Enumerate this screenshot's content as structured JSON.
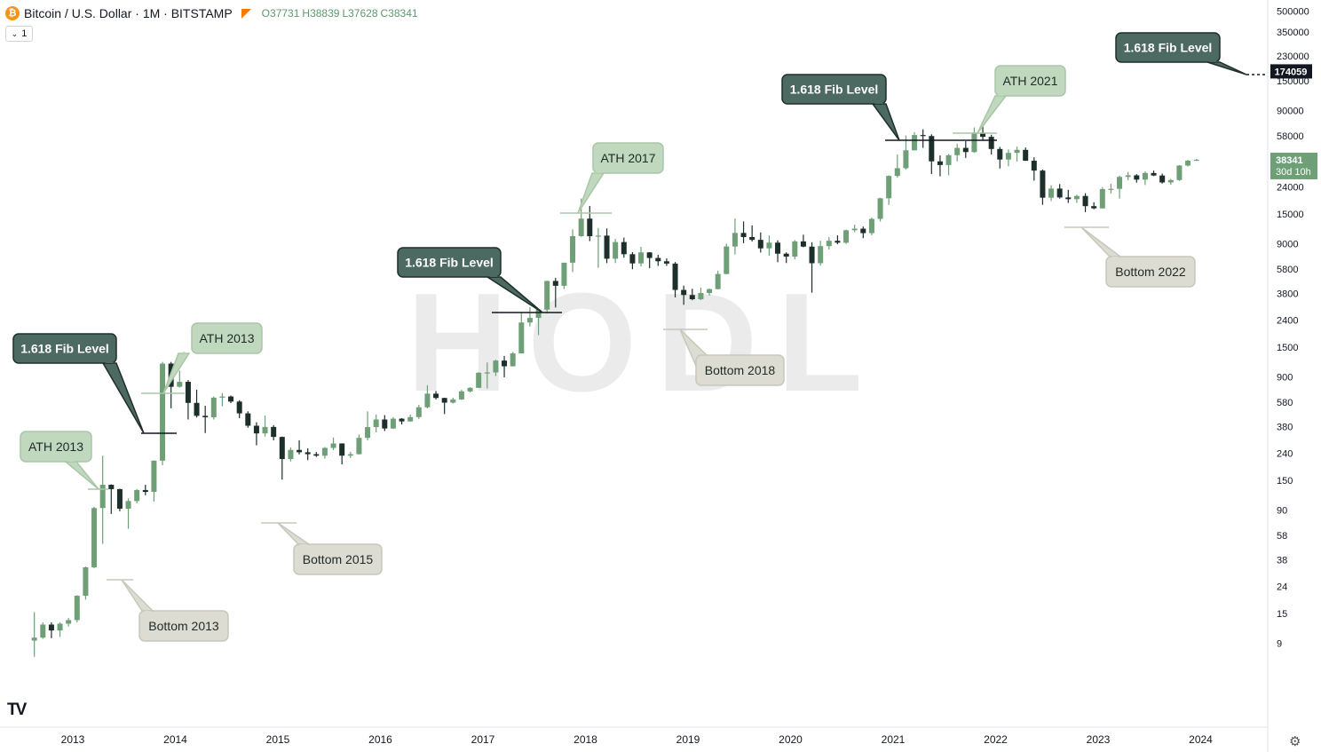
{
  "header": {
    "title": "Bitcoin / U.S. Dollar · 1M · BITSTAMP",
    "coin_icon": "bitcoin-icon",
    "open_label": "O",
    "open": "37731",
    "high_label": "H",
    "high": "38839",
    "low_label": "L",
    "low": "37628",
    "close_label": "C",
    "close": "38341"
  },
  "collapse_button": {
    "label": "1"
  },
  "colors": {
    "up": "#6f9f76",
    "down": "#1d2f2b",
    "fib_fill": "#4c6a62",
    "ath_fill": "#c0d8be",
    "bottom_fill": "#dcdcd2",
    "watermark": "#ebebeb",
    "last_price_bg": "#6f9f76",
    "fib_price_bg": "#131722"
  },
  "chart_data": {
    "type": "candlestick",
    "interval": "1M",
    "y_scale": "log",
    "ylim": [
      5,
      500000
    ],
    "y_ticks": [
      9,
      15,
      24,
      38,
      58,
      90,
      150,
      240,
      380,
      580,
      900,
      1500,
      2400,
      3800,
      5800,
      9000,
      15000,
      24000,
      38000,
      58000,
      90000,
      150000,
      230000,
      350000,
      500000
    ],
    "x_ticks": [
      "2013",
      "2014",
      "2015",
      "2016",
      "2017",
      "2018",
      "2019",
      "2020",
      "2021",
      "2022",
      "2023",
      "2024"
    ],
    "watermark": "HODL",
    "last_price": {
      "value": "38341",
      "countdown": "30d 10h"
    },
    "fib_price_label": "174059",
    "candles": [
      {
        "t": "2012-08",
        "o": 9.4,
        "h": 15.4,
        "l": 7.1,
        "c": 9.9
      },
      {
        "t": "2012-09",
        "o": 9.9,
        "h": 12.9,
        "l": 9.7,
        "c": 12.4
      },
      {
        "t": "2012-10",
        "o": 12.4,
        "h": 12.9,
        "l": 9.8,
        "c": 11.2
      },
      {
        "t": "2012-11",
        "o": 11.2,
        "h": 12.9,
        "l": 10.0,
        "c": 12.6
      },
      {
        "t": "2012-12",
        "o": 12.6,
        "h": 13.9,
        "l": 12.0,
        "c": 13.4
      },
      {
        "t": "2013-01",
        "o": 13.4,
        "h": 20.6,
        "l": 12.9,
        "c": 20.4
      },
      {
        "t": "2013-02",
        "o": 20.4,
        "h": 33.8,
        "l": 19.1,
        "c": 33.4
      },
      {
        "t": "2013-03",
        "o": 33.4,
        "h": 95.0,
        "l": 32.9,
        "c": 93.0
      },
      {
        "t": "2013-04",
        "o": 93.0,
        "h": 230.0,
        "l": 50.0,
        "c": 139.0
      },
      {
        "t": "2013-05",
        "o": 139.0,
        "h": 140.0,
        "l": 84.0,
        "c": 129.0
      },
      {
        "t": "2013-06",
        "o": 129.0,
        "h": 130.0,
        "l": 88.0,
        "c": 92.0
      },
      {
        "t": "2013-07",
        "o": 92.0,
        "h": 110.0,
        "l": 65.0,
        "c": 105.0
      },
      {
        "t": "2013-08",
        "o": 105.0,
        "h": 129.0,
        "l": 101.0,
        "c": 127.0
      },
      {
        "t": "2013-09",
        "o": 127.0,
        "h": 139.0,
        "l": 116.0,
        "c": 123.0
      },
      {
        "t": "2013-10",
        "o": 123.0,
        "h": 212.0,
        "l": 104.0,
        "c": 211.0
      },
      {
        "t": "2013-11",
        "o": 211.0,
        "h": 1163.0,
        "l": 195.0,
        "c": 1130.0
      },
      {
        "t": "2013-12",
        "o": 1130.0,
        "h": 1163.0,
        "l": 522.0,
        "c": 757.0
      },
      {
        "t": "2014-01",
        "o": 757.0,
        "h": 1000.0,
        "l": 747.0,
        "c": 825.0
      },
      {
        "t": "2014-02",
        "o": 825.0,
        "h": 850.0,
        "l": 430.0,
        "c": 573.0
      },
      {
        "t": "2014-03",
        "o": 573.0,
        "h": 720.0,
        "l": 445.0,
        "c": 458.0
      },
      {
        "t": "2014-04",
        "o": 458.0,
        "h": 545.0,
        "l": 340.0,
        "c": 447.0
      },
      {
        "t": "2014-05",
        "o": 447.0,
        "h": 640.0,
        "l": 430.0,
        "c": 627.0
      },
      {
        "t": "2014-06",
        "o": 627.0,
        "h": 680.0,
        "l": 540.0,
        "c": 640.0
      },
      {
        "t": "2014-07",
        "o": 640.0,
        "h": 650.0,
        "l": 570.0,
        "c": 586.0
      },
      {
        "t": "2014-08",
        "o": 586.0,
        "h": 600.0,
        "l": 440.0,
        "c": 478.0
      },
      {
        "t": "2014-09",
        "o": 478.0,
        "h": 495.0,
        "l": 373.0,
        "c": 386.0
      },
      {
        "t": "2014-10",
        "o": 386.0,
        "h": 410.0,
        "l": 275.0,
        "c": 338.0
      },
      {
        "t": "2014-11",
        "o": 338.0,
        "h": 460.0,
        "l": 320.0,
        "c": 378.0
      },
      {
        "t": "2014-12",
        "o": 378.0,
        "h": 390.0,
        "l": 300.0,
        "c": 318.0
      },
      {
        "t": "2015-01",
        "o": 318.0,
        "h": 320.0,
        "l": 152.0,
        "c": 217.0
      },
      {
        "t": "2015-02",
        "o": 217.0,
        "h": 265.0,
        "l": 208.0,
        "c": 254.0
      },
      {
        "t": "2015-03",
        "o": 254.0,
        "h": 300.0,
        "l": 235.0,
        "c": 244.0
      },
      {
        "t": "2015-04",
        "o": 244.0,
        "h": 261.0,
        "l": 213.0,
        "c": 236.0
      },
      {
        "t": "2015-05",
        "o": 236.0,
        "h": 245.0,
        "l": 225.0,
        "c": 230.0
      },
      {
        "t": "2015-06",
        "o": 230.0,
        "h": 267.0,
        "l": 218.0,
        "c": 263.0
      },
      {
        "t": "2015-07",
        "o": 263.0,
        "h": 315.0,
        "l": 253.0,
        "c": 284.0
      },
      {
        "t": "2015-08",
        "o": 284.0,
        "h": 285.0,
        "l": 198.0,
        "c": 230.0
      },
      {
        "t": "2015-09",
        "o": 230.0,
        "h": 246.0,
        "l": 221.0,
        "c": 236.0
      },
      {
        "t": "2015-10",
        "o": 236.0,
        "h": 332.0,
        "l": 235.0,
        "c": 313.0
      },
      {
        "t": "2015-11",
        "o": 313.0,
        "h": 495.0,
        "l": 300.0,
        "c": 377.0
      },
      {
        "t": "2015-12",
        "o": 377.0,
        "h": 468.0,
        "l": 344.0,
        "c": 430.0
      },
      {
        "t": "2016-01",
        "o": 430.0,
        "h": 464.0,
        "l": 352.0,
        "c": 368.0
      },
      {
        "t": "2016-02",
        "o": 368.0,
        "h": 448.0,
        "l": 365.0,
        "c": 436.0
      },
      {
        "t": "2016-03",
        "o": 436.0,
        "h": 440.0,
        "l": 395.0,
        "c": 416.0
      },
      {
        "t": "2016-04",
        "o": 416.0,
        "h": 468.0,
        "l": 414.0,
        "c": 448.0
      },
      {
        "t": "2016-05",
        "o": 448.0,
        "h": 553.0,
        "l": 434.0,
        "c": 531.0
      },
      {
        "t": "2016-06",
        "o": 531.0,
        "h": 778.0,
        "l": 521.0,
        "c": 672.0
      },
      {
        "t": "2016-07",
        "o": 672.0,
        "h": 703.0,
        "l": 608.0,
        "c": 624.0
      },
      {
        "t": "2016-08",
        "o": 624.0,
        "h": 626.0,
        "l": 472.0,
        "c": 575.0
      },
      {
        "t": "2016-09",
        "o": 575.0,
        "h": 626.0,
        "l": 566.0,
        "c": 608.0
      },
      {
        "t": "2016-10",
        "o": 608.0,
        "h": 720.0,
        "l": 603.0,
        "c": 699.0
      },
      {
        "t": "2016-11",
        "o": 699.0,
        "h": 753.0,
        "l": 687.0,
        "c": 743.0
      },
      {
        "t": "2016-12",
        "o": 743.0,
        "h": 976.0,
        "l": 742.0,
        "c": 964.0
      },
      {
        "t": "2017-01",
        "o": 964.0,
        "h": 1153.0,
        "l": 735.0,
        "c": 970.0
      },
      {
        "t": "2017-02",
        "o": 970.0,
        "h": 1210.0,
        "l": 913.0,
        "c": 1191.0
      },
      {
        "t": "2017-03",
        "o": 1191.0,
        "h": 1290.0,
        "l": 891.0,
        "c": 1079.0
      },
      {
        "t": "2017-04",
        "o": 1079.0,
        "h": 1380.0,
        "l": 1077.0,
        "c": 1348.0
      },
      {
        "t": "2017-05",
        "o": 1348.0,
        "h": 2760.0,
        "l": 1347.0,
        "c": 2300.0
      },
      {
        "t": "2017-06",
        "o": 2300.0,
        "h": 2999.0,
        "l": 2150.0,
        "c": 2490.0
      },
      {
        "t": "2017-07",
        "o": 2490.0,
        "h": 2900.0,
        "l": 1850.0,
        "c": 2875.0
      },
      {
        "t": "2017-08",
        "o": 2875.0,
        "h": 4740.0,
        "l": 2690.0,
        "c": 4718.0
      },
      {
        "t": "2017-09",
        "o": 4718.0,
        "h": 4980.0,
        "l": 2980.0,
        "c": 4338.0
      },
      {
        "t": "2017-10",
        "o": 4338.0,
        "h": 6470.0,
        "l": 4110.0,
        "c": 6468.0
      },
      {
        "t": "2017-11",
        "o": 6468.0,
        "h": 11500.0,
        "l": 5500.0,
        "c": 10233.0
      },
      {
        "t": "2017-12",
        "o": 10233.0,
        "h": 19666.0,
        "l": 10130.0,
        "c": 13860.0
      },
      {
        "t": "2018-01",
        "o": 13860.0,
        "h": 17250.0,
        "l": 9400.0,
        "c": 10220.0
      },
      {
        "t": "2018-02",
        "o": 10220.0,
        "h": 11780.0,
        "l": 5920.0,
        "c": 10330.0
      },
      {
        "t": "2018-03",
        "o": 10330.0,
        "h": 11700.0,
        "l": 6420.0,
        "c": 6930.0
      },
      {
        "t": "2018-04",
        "o": 6930.0,
        "h": 9760.0,
        "l": 6430.0,
        "c": 9240.0
      },
      {
        "t": "2018-05",
        "o": 9240.0,
        "h": 9990.0,
        "l": 7060.0,
        "c": 7490.0
      },
      {
        "t": "2018-06",
        "o": 7490.0,
        "h": 7760.0,
        "l": 5780.0,
        "c": 6390.0
      },
      {
        "t": "2018-07",
        "o": 6390.0,
        "h": 8500.0,
        "l": 6070.0,
        "c": 7730.0
      },
      {
        "t": "2018-08",
        "o": 7730.0,
        "h": 7760.0,
        "l": 5880.0,
        "c": 7020.0
      },
      {
        "t": "2018-09",
        "o": 7020.0,
        "h": 7410.0,
        "l": 6120.0,
        "c": 6630.0
      },
      {
        "t": "2018-10",
        "o": 6630.0,
        "h": 6960.0,
        "l": 6120.0,
        "c": 6370.0
      },
      {
        "t": "2018-11",
        "o": 6370.0,
        "h": 6540.0,
        "l": 3550.0,
        "c": 4040.0
      },
      {
        "t": "2018-12",
        "o": 4040.0,
        "h": 4350.0,
        "l": 3122.0,
        "c": 3700.0
      },
      {
        "t": "2019-01",
        "o": 3700.0,
        "h": 4120.0,
        "l": 3380.0,
        "c": 3440.0
      },
      {
        "t": "2019-02",
        "o": 3440.0,
        "h": 4210.0,
        "l": 3390.0,
        "c": 3830.0
      },
      {
        "t": "2019-03",
        "o": 3830.0,
        "h": 4140.0,
        "l": 3670.0,
        "c": 4100.0
      },
      {
        "t": "2019-04",
        "o": 4100.0,
        "h": 5640.0,
        "l": 4070.0,
        "c": 5320.0
      },
      {
        "t": "2019-05",
        "o": 5320.0,
        "h": 9000.0,
        "l": 5300.0,
        "c": 8560.0
      },
      {
        "t": "2019-06",
        "o": 8560.0,
        "h": 13880.0,
        "l": 7450.0,
        "c": 10820.0
      },
      {
        "t": "2019-07",
        "o": 10820.0,
        "h": 13200.0,
        "l": 9070.0,
        "c": 10080.0
      },
      {
        "t": "2019-08",
        "o": 10080.0,
        "h": 12330.0,
        "l": 9330.0,
        "c": 9600.0
      },
      {
        "t": "2019-09",
        "o": 9600.0,
        "h": 10920.0,
        "l": 7710.0,
        "c": 8290.0
      },
      {
        "t": "2019-10",
        "o": 8290.0,
        "h": 10370.0,
        "l": 7300.0,
        "c": 9150.0
      },
      {
        "t": "2019-11",
        "o": 9150.0,
        "h": 9510.0,
        "l": 6520.0,
        "c": 7560.0
      },
      {
        "t": "2019-12",
        "o": 7560.0,
        "h": 7740.0,
        "l": 6430.0,
        "c": 7190.0
      },
      {
        "t": "2020-01",
        "o": 7190.0,
        "h": 9570.0,
        "l": 6860.0,
        "c": 9350.0
      },
      {
        "t": "2020-02",
        "o": 9350.0,
        "h": 10500.0,
        "l": 8450.0,
        "c": 8540.0
      },
      {
        "t": "2020-03",
        "o": 8540.0,
        "h": 9190.0,
        "l": 3850.0,
        "c": 6410.0
      },
      {
        "t": "2020-04",
        "o": 6410.0,
        "h": 9460.0,
        "l": 6150.0,
        "c": 8620.0
      },
      {
        "t": "2020-05",
        "o": 8620.0,
        "h": 10070.0,
        "l": 8120.0,
        "c": 9450.0
      },
      {
        "t": "2020-06",
        "o": 9450.0,
        "h": 10380.0,
        "l": 8900.0,
        "c": 9140.0
      },
      {
        "t": "2020-07",
        "o": 9140.0,
        "h": 11450.0,
        "l": 8960.0,
        "c": 11340.0
      },
      {
        "t": "2020-08",
        "o": 11340.0,
        "h": 12470.0,
        "l": 10980.0,
        "c": 11650.0
      },
      {
        "t": "2020-09",
        "o": 11650.0,
        "h": 12070.0,
        "l": 9880.0,
        "c": 10780.0
      },
      {
        "t": "2020-10",
        "o": 10780.0,
        "h": 14100.0,
        "l": 10380.0,
        "c": 13800.0
      },
      {
        "t": "2020-11",
        "o": 13800.0,
        "h": 19900.0,
        "l": 13200.0,
        "c": 19700.0
      },
      {
        "t": "2020-12",
        "o": 19700.0,
        "h": 29300.0,
        "l": 17580.0,
        "c": 28990.0
      },
      {
        "t": "2021-01",
        "o": 28990.0,
        "h": 41950.0,
        "l": 28130.0,
        "c": 33140.0
      },
      {
        "t": "2021-02",
        "o": 33140.0,
        "h": 58350.0,
        "l": 32300.0,
        "c": 45160.0
      },
      {
        "t": "2021-03",
        "o": 45160.0,
        "h": 61780.0,
        "l": 44980.0,
        "c": 58800.0
      },
      {
        "t": "2021-04",
        "o": 58800.0,
        "h": 64900.0,
        "l": 47100.0,
        "c": 57800.0
      },
      {
        "t": "2021-05",
        "o": 57800.0,
        "h": 59500.0,
        "l": 30000.0,
        "c": 37300.0
      },
      {
        "t": "2021-06",
        "o": 37300.0,
        "h": 41300.0,
        "l": 28800.0,
        "c": 35000.0
      },
      {
        "t": "2021-07",
        "o": 35000.0,
        "h": 42300.0,
        "l": 29300.0,
        "c": 41500.0
      },
      {
        "t": "2021-08",
        "o": 41500.0,
        "h": 50500.0,
        "l": 37300.0,
        "c": 47100.0
      },
      {
        "t": "2021-09",
        "o": 47100.0,
        "h": 52900.0,
        "l": 39600.0,
        "c": 43800.0
      },
      {
        "t": "2021-10",
        "o": 43800.0,
        "h": 67000.0,
        "l": 43300.0,
        "c": 61300.0
      },
      {
        "t": "2021-11",
        "o": 61300.0,
        "h": 69000.0,
        "l": 53300.0,
        "c": 57000.0
      },
      {
        "t": "2021-12",
        "o": 57000.0,
        "h": 59100.0,
        "l": 42000.0,
        "c": 46200.0
      },
      {
        "t": "2022-01",
        "o": 46200.0,
        "h": 47900.0,
        "l": 33000.0,
        "c": 38500.0
      },
      {
        "t": "2022-02",
        "o": 38500.0,
        "h": 45800.0,
        "l": 34300.0,
        "c": 43200.0
      },
      {
        "t": "2022-03",
        "o": 43200.0,
        "h": 48200.0,
        "l": 37200.0,
        "c": 45500.0
      },
      {
        "t": "2022-04",
        "o": 45500.0,
        "h": 47400.0,
        "l": 37600.0,
        "c": 37700.0
      },
      {
        "t": "2022-05",
        "o": 37700.0,
        "h": 40000.0,
        "l": 26700.0,
        "c": 31800.0
      },
      {
        "t": "2022-06",
        "o": 31800.0,
        "h": 32400.0,
        "l": 17600.0,
        "c": 19900.0
      },
      {
        "t": "2022-07",
        "o": 19900.0,
        "h": 24700.0,
        "l": 18800.0,
        "c": 23300.0
      },
      {
        "t": "2022-08",
        "o": 23300.0,
        "h": 25200.0,
        "l": 19600.0,
        "c": 20000.0
      },
      {
        "t": "2022-09",
        "o": 20000.0,
        "h": 22800.0,
        "l": 18200.0,
        "c": 19400.0
      },
      {
        "t": "2022-10",
        "o": 19400.0,
        "h": 21000.0,
        "l": 18200.0,
        "c": 20500.0
      },
      {
        "t": "2022-11",
        "o": 20500.0,
        "h": 21500.0,
        "l": 15500.0,
        "c": 17200.0
      },
      {
        "t": "2022-12",
        "o": 17200.0,
        "h": 18400.0,
        "l": 16300.0,
        "c": 16550.0
      },
      {
        "t": "2023-01",
        "o": 16550.0,
        "h": 23900.0,
        "l": 16500.0,
        "c": 23100.0
      },
      {
        "t": "2023-02",
        "o": 23100.0,
        "h": 25300.0,
        "l": 21400.0,
        "c": 23200.0
      },
      {
        "t": "2023-03",
        "o": 23200.0,
        "h": 29200.0,
        "l": 19600.0,
        "c": 28500.0
      },
      {
        "t": "2023-04",
        "o": 28500.0,
        "h": 31000.0,
        "l": 26900.0,
        "c": 29300.0
      },
      {
        "t": "2023-05",
        "o": 29300.0,
        "h": 29900.0,
        "l": 25800.0,
        "c": 27200.0
      },
      {
        "t": "2023-06",
        "o": 27200.0,
        "h": 31400.0,
        "l": 24800.0,
        "c": 30500.0
      },
      {
        "t": "2023-07",
        "o": 30500.0,
        "h": 31800.0,
        "l": 28900.0,
        "c": 29200.0
      },
      {
        "t": "2023-08",
        "o": 29200.0,
        "h": 30200.0,
        "l": 25400.0,
        "c": 25900.0
      },
      {
        "t": "2023-09",
        "o": 25900.0,
        "h": 27500.0,
        "l": 24900.0,
        "c": 27000.0
      },
      {
        "t": "2023-10",
        "o": 27000.0,
        "h": 35000.0,
        "l": 26600.0,
        "c": 34700.0
      },
      {
        "t": "2023-11",
        "o": 34700.0,
        "h": 38400.0,
        "l": 34100.0,
        "c": 37731.0
      },
      {
        "t": "2023-12",
        "o": 37731.0,
        "h": 38839.0,
        "l": 37628.0,
        "c": 38341.0
      }
    ],
    "annotations": [
      {
        "kind": "ath",
        "text": "ATH 2013",
        "anchor_t": "2013-04",
        "anchor_v": 230
      },
      {
        "kind": "ath",
        "text": "ATH 2013",
        "anchor_t": "2013-11",
        "anchor_v": 1163
      },
      {
        "kind": "ath",
        "text": "ATH 2017",
        "anchor_t": "2017-12",
        "anchor_v": 19666
      },
      {
        "kind": "ath",
        "text": "ATH 2021",
        "anchor_t": "2021-11",
        "anchor_v": 69000
      },
      {
        "kind": "bottom",
        "text": "Bottom 2013",
        "anchor_t": "2013-07",
        "anchor_v": 65
      },
      {
        "kind": "bottom",
        "text": "Bottom 2015",
        "anchor_t": "2015-01",
        "anchor_v": 152
      },
      {
        "kind": "bottom",
        "text": "Bottom 2018",
        "anchor_t": "2018-12",
        "anchor_v": 3122
      },
      {
        "kind": "bottom",
        "text": "Bottom 2022",
        "anchor_t": "2022-11",
        "anchor_v": 15500
      },
      {
        "kind": "fib",
        "text": "1.618 Fib Level",
        "anchor_t": "2013-10",
        "anchor_v": 660
      },
      {
        "kind": "fib",
        "text": "1.618 Fib Level",
        "anchor_t": "2017-08",
        "anchor_v": 4000
      },
      {
        "kind": "fib",
        "text": "1.618 Fib Level",
        "anchor_t": "2021-01",
        "anchor_v": 60000
      },
      {
        "kind": "fib",
        "text": "1.618 Fib Level",
        "anchor_t": "2024-05",
        "anchor_v": 174059
      }
    ]
  }
}
